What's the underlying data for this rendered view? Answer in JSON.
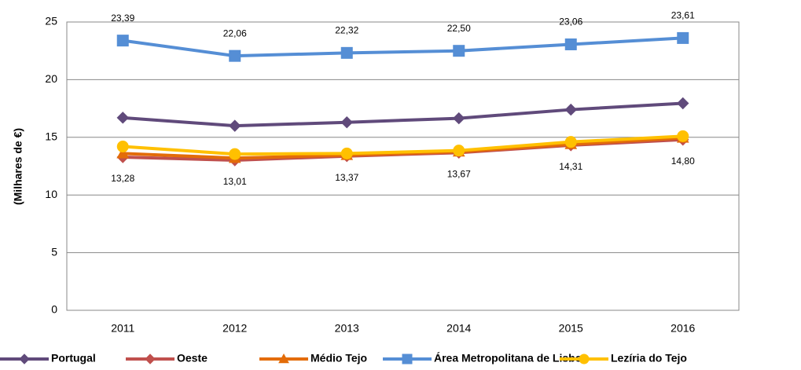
{
  "chart_data": {
    "type": "line",
    "y_label": "(Milhares de €)",
    "categories": [
      "2011",
      "2012",
      "2013",
      "2014",
      "2015",
      "2016"
    ],
    "ylim": [
      0,
      25
    ],
    "yticks": [
      0,
      5,
      10,
      15,
      20,
      25
    ],
    "grid": true,
    "legend": "bottom",
    "series": [
      {
        "name": "Portugal",
        "color": "#604a7b",
        "marker": "diamond",
        "values": [
          16.7,
          16.0,
          16.3,
          16.65,
          17.4,
          17.95
        ]
      },
      {
        "name": "Oeste",
        "color": "#c0504d",
        "marker": "diamond",
        "values": [
          13.28,
          13.01,
          13.37,
          13.67,
          14.31,
          14.8
        ],
        "value_labels": [
          "13,28",
          "13,01",
          "13,37",
          "13,67",
          "14,31",
          "14,80"
        ],
        "label_position": "below"
      },
      {
        "name": "Médio Tejo",
        "color": "#e36c09",
        "marker": "triangle",
        "values": [
          13.6,
          13.2,
          13.45,
          13.75,
          14.4,
          14.95
        ]
      },
      {
        "name": "Área Metropolitana de Lisboa",
        "color": "#558ed5",
        "marker": "square",
        "values": [
          23.39,
          22.06,
          22.32,
          22.5,
          23.06,
          23.61
        ],
        "value_labels": [
          "23,39",
          "22,06",
          "22,32",
          "22,50",
          "23,06",
          "23,61"
        ],
        "label_position": "above"
      },
      {
        "name": "Lezíria do Tejo",
        "color": "#ffc000",
        "marker": "circle",
        "values": [
          14.2,
          13.55,
          13.6,
          13.85,
          14.6,
          15.1
        ]
      }
    ]
  }
}
